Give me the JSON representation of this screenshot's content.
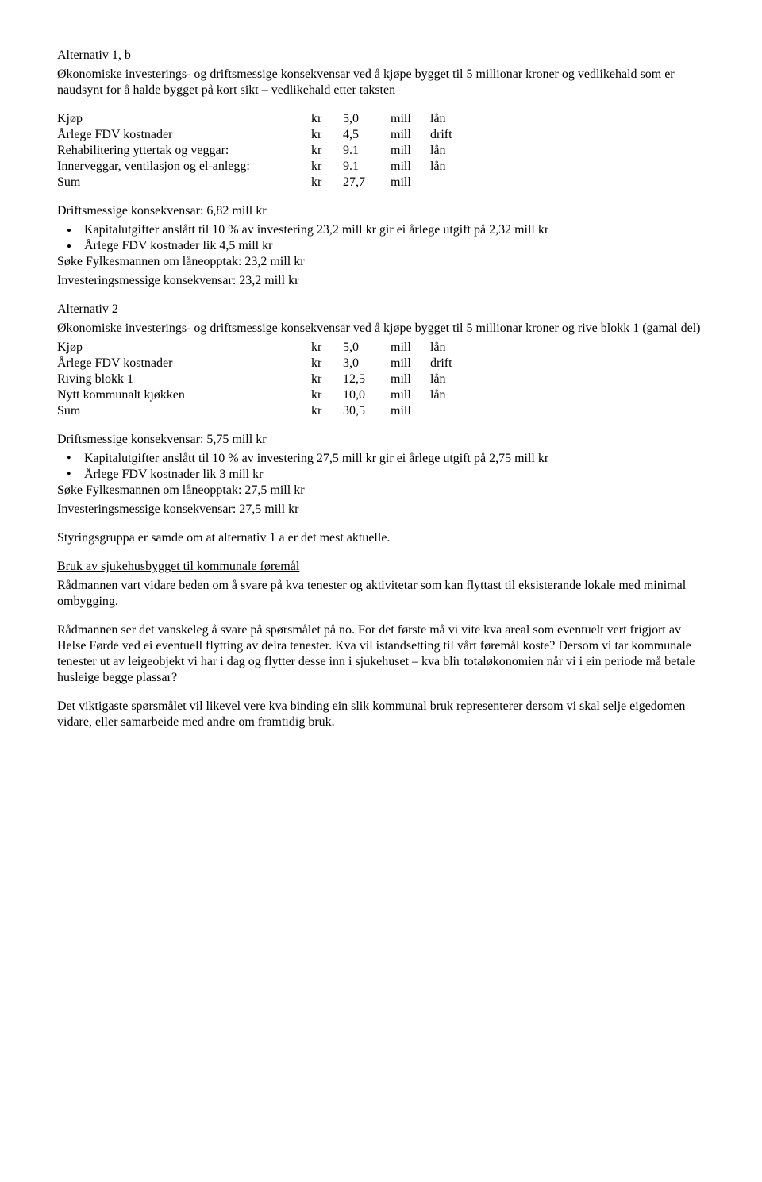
{
  "alt1b": {
    "heading": "Alternativ 1, b",
    "intro": "Økonomiske investerings- og driftsmessige konsekvensar ved å kjøpe bygget til 5 millionar kroner og vedlikehald som er naudsynt for å halde bygget på kort sikt – vedlikehald etter taksten",
    "rows": [
      {
        "label": "Kjøp",
        "kr": "kr",
        "val": "5,0",
        "unit": "mill",
        "fin": "lån"
      },
      {
        "label": "Årlege FDV kostnader",
        "kr": "kr",
        "val": "4,5",
        "unit": "mill",
        "fin": "drift"
      },
      {
        "label": "Rehabilitering yttertak og veggar:",
        "kr": "kr",
        "val": "9.1",
        "unit": "mill",
        "fin": "lån"
      },
      {
        "label": "Innerveggar, ventilasjon og el-anlegg:",
        "kr": "kr",
        "val": "9.1",
        "unit": "mill",
        "fin": "lån"
      },
      {
        "label": "Sum",
        "kr": "kr",
        "val": "27,7",
        "unit": "mill",
        "fin": ""
      }
    ],
    "drift_heading": "Driftsmessige konsekvensar: 6,82 mill kr",
    "bullets": [
      "Kapitalutgifter anslått til 10 % av investering 23,2 mill kr gir ei årlege utgift på 2,32 mill kr",
      "Årlege FDV kostnader lik 4,5 mill kr"
    ],
    "after1": "Søke Fylkesmannen om låneopptak: 23,2 mill kr",
    "after2": "Investeringsmessige konsekvensar: 23,2 mill kr"
  },
  "alt2": {
    "heading": "Alternativ 2",
    "intro": "Økonomiske investerings- og driftsmessige konsekvensar ved å kjøpe bygget til 5 millionar kroner og rive blokk 1 (gamal del)",
    "rows": [
      {
        "label": "Kjøp",
        "kr": "kr",
        "val": "5,0",
        "unit": "mill",
        "fin": "lån"
      },
      {
        "label": "Årlege FDV kostnader",
        "kr": "kr",
        "val": "3,0",
        "unit": "mill",
        "fin": "drift"
      },
      {
        "label": "Riving blokk 1",
        "kr": "kr",
        "val": "12,5",
        "unit": "mill",
        "fin": "lån"
      },
      {
        "label": "Nytt kommunalt kjøkken",
        "kr": "kr",
        "val": "10,0",
        "unit": "mill",
        "fin": "lån"
      },
      {
        "label": "Sum",
        "kr": "kr",
        "val": "30,5",
        "unit": "mill",
        "fin": ""
      }
    ],
    "drift_heading": "Driftsmessige konsekvensar: 5,75 mill kr",
    "bullets": [
      "Kapitalutgifter anslått til 10 % av investering 27,5 mill kr gir ei årlege utgift på 2,75 mill kr",
      "Årlege FDV kostnader lik 3 mill kr"
    ],
    "after1": "Søke Fylkesmannen om låneopptak: 27,5 mill kr",
    "after2": "Investeringsmessige konsekvensar: 27,5 mill kr"
  },
  "styring": "Styringsgruppa er samde om at alternativ 1 a er det mest aktuelle.",
  "bruk_heading": "Bruk av sjukehusbygget til kommunale føremål",
  "bruk_p1": "Rådmannen vart vidare beden om å svare på kva tenester og aktivitetar som kan flyttast til eksisterande lokale med minimal ombygging.",
  "bruk_p2": "Rådmannen ser det vanskeleg å svare på spørsmålet på no. For det første må vi vite kva areal som eventuelt vert frigjort av Helse Førde ved ei eventuell flytting av deira tenester. Kva vil istandsetting til vårt føremål koste?  Dersom vi tar kommunale tenester ut av leigeobjekt vi har i dag og flytter desse inn  i sjukehuset – kva blir totaløkonomien når vi i ein periode må betale husleige begge plassar?",
  "bruk_p3": "Det viktigaste spørsmålet vil likevel vere kva binding ein slik kommunal bruk representerer dersom vi skal selje eigedomen vidare, eller samarbeide med andre om framtidig bruk."
}
